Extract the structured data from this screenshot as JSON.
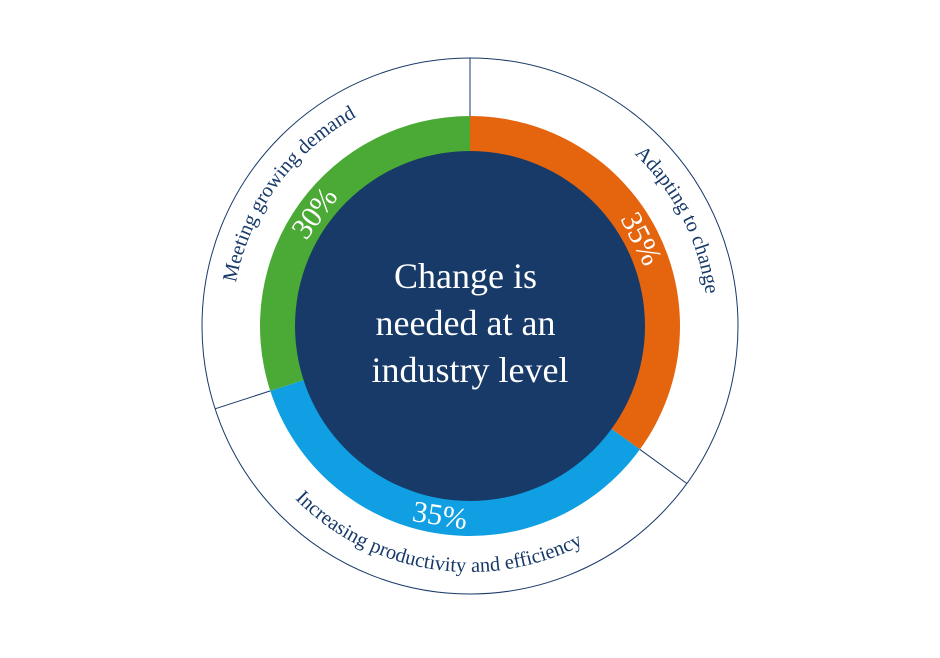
{
  "chart_data": {
    "type": "pie",
    "center_text": [
      "Change is",
      "needed at an",
      "industry level"
    ],
    "slices": [
      {
        "label": "Adapting to change",
        "value": 35,
        "value_label": "35%",
        "color": "#e5650f"
      },
      {
        "label": "Increasing productivity and efficiency",
        "value": 35,
        "value_label": "35%",
        "color": "#0f9fe2"
      },
      {
        "label": "Meeting growing demand",
        "value": 30,
        "value_label": "30%",
        "color": "#4aaa35"
      }
    ],
    "colors": {
      "center": "#173a68",
      "outline": "#173a68",
      "label_text": "#173a68"
    }
  }
}
